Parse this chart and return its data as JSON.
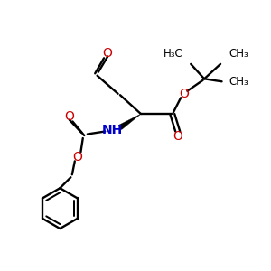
{
  "bg_color": "#ffffff",
  "black": "#000000",
  "red": "#cc0000",
  "blue": "#0000cc",
  "bond_lw": 1.7,
  "figsize": [
    3.0,
    3.0
  ],
  "dpi": 100,
  "xlim": [
    0,
    10
  ],
  "ylim": [
    0,
    10
  ]
}
